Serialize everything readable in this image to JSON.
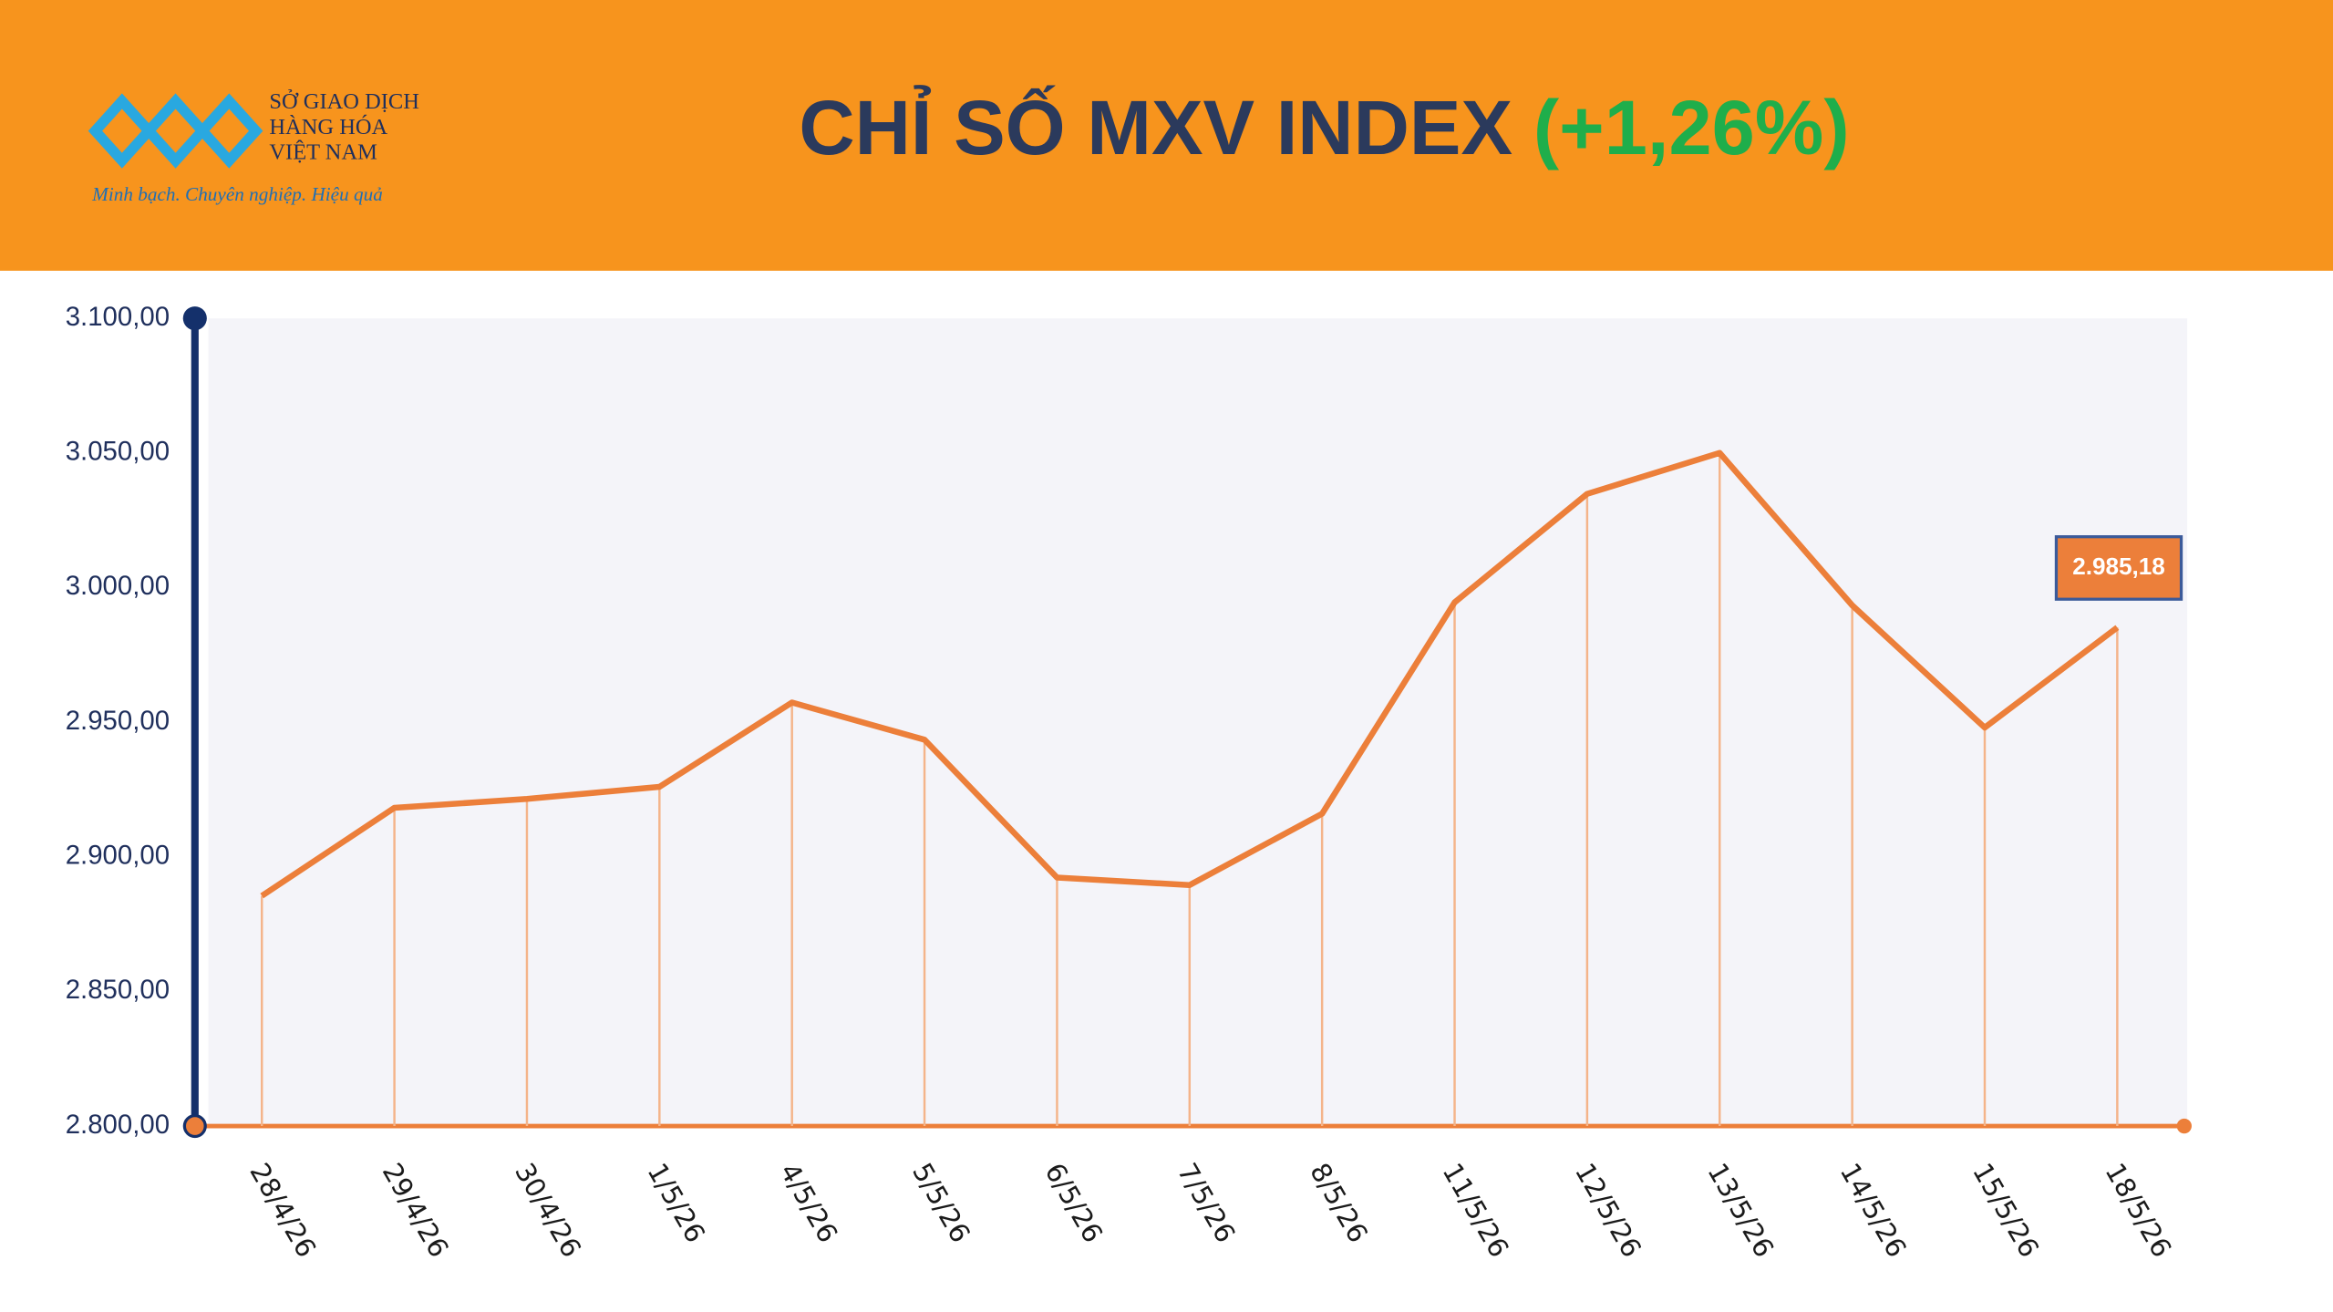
{
  "header": {
    "logo_lines": [
      "SỞ GIAO DỊCH",
      "HÀNG HÓA",
      "VIỆT NAM"
    ],
    "slogan": "Minh bạch. Chuyên nghiệp. Hiệu quả"
  },
  "chart_data": {
    "type": "line",
    "title": "CHỈ SỐ MXV INDEX",
    "subtitle": "(+1,26%)",
    "categories": [
      "28/4/26",
      "29/4/26",
      "30/4/26",
      "1/5/26",
      "4/5/26",
      "5/5/26",
      "6/5/26",
      "7/5/26",
      "8/5/26",
      "11/5/26",
      "12/5/26",
      "13/5/26",
      "14/5/26",
      "15/5/26",
      "18/5/26"
    ],
    "values": [
      2885.5,
      2918.2,
      2921.5,
      2926,
      2957.3,
      2943.5,
      2892.3,
      2889.5,
      2916,
      2994.5,
      3034.8,
      3050,
      2993.4,
      2948,
      2985.18
    ],
    "value_labels": [
      null,
      null,
      null,
      null,
      null,
      null,
      null,
      null,
      null,
      null,
      null,
      null,
      null,
      null,
      "2.985,18"
    ],
    "color": "#ec7f3a",
    "ylim": [
      2800,
      3100
    ],
    "yticks": [
      {
        "value": 2800,
        "label": "2.800,00"
      },
      {
        "value": 2850,
        "label": "2.850,00"
      },
      {
        "value": 2900,
        "label": "2.900,00"
      },
      {
        "value": 2950,
        "label": "2.950,00"
      },
      {
        "value": 3000,
        "label": "3.000,00"
      },
      {
        "value": 3050,
        "label": "3.050,00"
      },
      {
        "value": 3100,
        "label": "3.100,00"
      }
    ],
    "grid": false
  }
}
